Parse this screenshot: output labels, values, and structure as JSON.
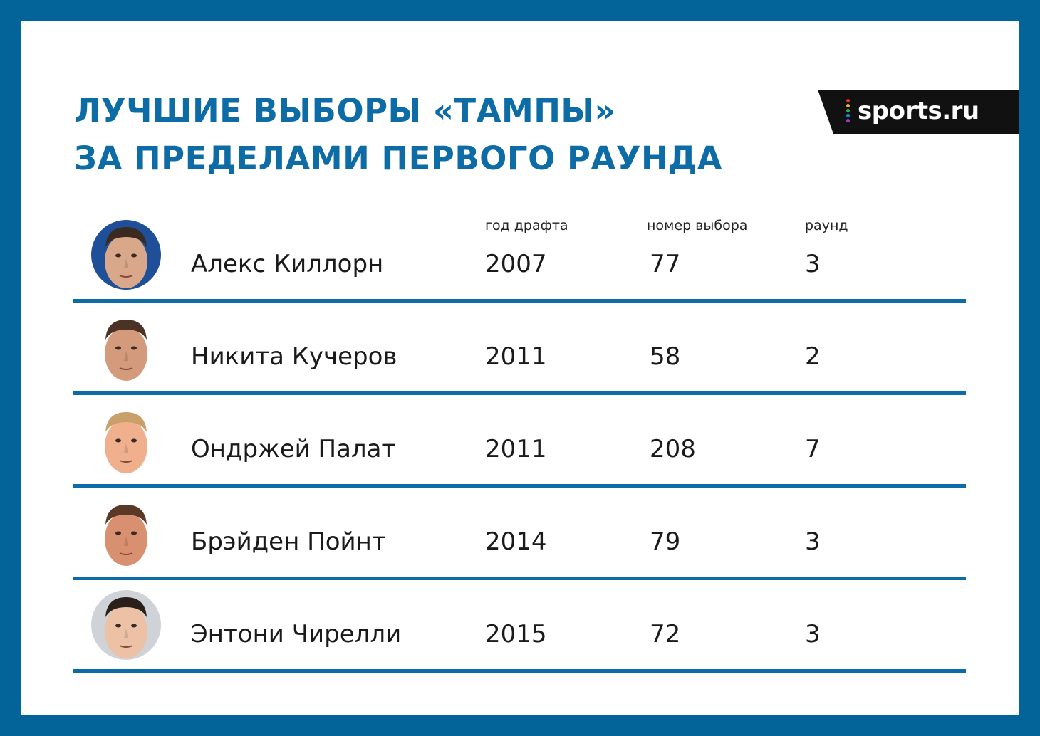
{
  "title": {
    "line1": "ЛУЧШИЕ ВЫБОРЫ «ТАМПЫ»",
    "line2": "ЗА ПРЕДЕЛАМИ ПЕРВОГО РАУНДА"
  },
  "logo": {
    "text": "sports.ru",
    "dot_colors": [
      "#e4342f",
      "#f6b21b",
      "#2bb24c",
      "#1c8fd9",
      "#9b3cc9"
    ]
  },
  "headers": {
    "year": "год драфта",
    "pick": "номер выбора",
    "round": "раунд"
  },
  "players": [
    {
      "name": "Алекс Киллорн",
      "year": "2007",
      "pick": "77",
      "round": "3",
      "photo_bg": "#1f4f98",
      "skin": "#d9a88a",
      "hair": "#3b2a20"
    },
    {
      "name": "Никита Кучеров",
      "year": "2011",
      "pick": "58",
      "round": "2",
      "photo_bg": "#ffffff",
      "skin": "#d49a7c",
      "hair": "#4a3325"
    },
    {
      "name": "Ондржей Палат",
      "year": "2011",
      "pick": "208",
      "round": "7",
      "photo_bg": "#ffffff",
      "skin": "#f0b08e",
      "hair": "#caa06a"
    },
    {
      "name": "Брэйден Пойнт",
      "year": "2014",
      "pick": "79",
      "round": "3",
      "photo_bg": "#ffffff",
      "skin": "#d99070",
      "hair": "#5a3a26"
    },
    {
      "name": "Энтони Чирелли",
      "year": "2015",
      "pick": "72",
      "round": "3",
      "photo_bg": "#cfd3d8",
      "skin": "#ecc1a5",
      "hair": "#2a2019"
    }
  ],
  "colors": {
    "frame": "#03649a",
    "accent": "#0d6ca6"
  }
}
